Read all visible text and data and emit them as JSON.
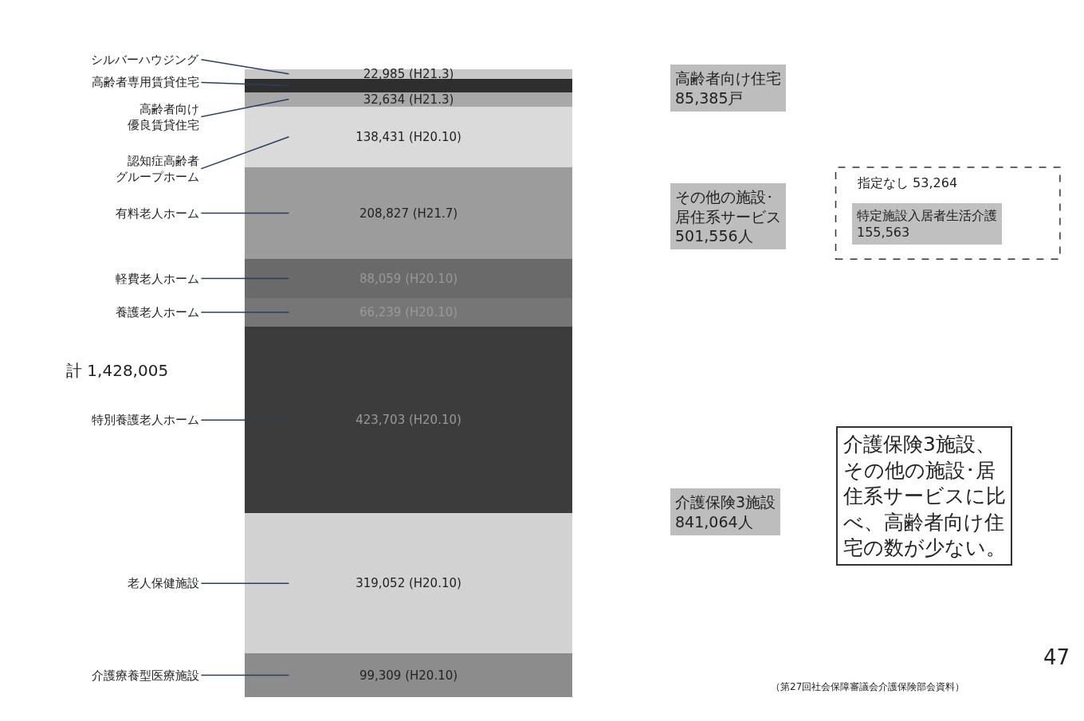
{
  "chart_data": {
    "type": "bar",
    "stacked": true,
    "categories": [
      null
    ],
    "legend": false,
    "series": [
      {
        "name": "介護療養型医療施設",
        "color": "#8c8c8c",
        "values": [
          99309
        ],
        "value_labels": [
          "99,309 (H20.10)"
        ]
      },
      {
        "name": "老人保健施設",
        "color": "#d2d2d2",
        "values": [
          319052
        ],
        "value_labels": [
          "319,052 (H20.10)"
        ]
      },
      {
        "name": "特別養護老人ホーム",
        "color": "#3c3c3c",
        "values": [
          423703
        ],
        "value_labels": [
          "423,703 (H20.10)"
        ]
      },
      {
        "name": "養護老人ホーム",
        "color": "#767676",
        "values": [
          66239
        ],
        "value_labels": [
          "66,239 (H20.10)"
        ]
      },
      {
        "name": "軽費老人ホーム",
        "color": "#6a6a6a",
        "values": [
          88059
        ],
        "value_labels": [
          "88,059 (H20.10)"
        ]
      },
      {
        "name": "有料老人ホーム",
        "color": "#9c9c9c",
        "values": [
          208827
        ],
        "value_labels": [
          "208,827 (H21.7)"
        ]
      },
      {
        "name": "認知症高齢者グループホーム",
        "color": "#dadada",
        "values": [
          138431
        ],
        "value_labels": [
          "138,431 (H20.10)"
        ]
      },
      {
        "name": "高齢者向け優良賃貸住宅",
        "color": "#a8a8a8",
        "values": [
          32634
        ],
        "value_labels": [
          "32,634 (H21.3)"
        ]
      },
      {
        "name": "高齢者専用賃貸住宅",
        "color": "#2e2e2e",
        "values": [
          29766
        ],
        "value_labels": [
          null
        ]
      },
      {
        "name": "シルバーハウジング",
        "color": "#c8c8c8",
        "values": [
          22985
        ],
        "value_labels": [
          "22,985 (H21.3)"
        ]
      }
    ],
    "annotations": [
      "高齢者向け住宅85,385戸",
      "その他の施設･居住系サービス501,556人",
      "介護保険3施設841,064人",
      "計 1,428,005",
      "指定なし 53,264",
      "特定施設入居者生活介護155,563",
      "介護保険3施設、その他の施設･居住系サービスに比べ、高齢者向け住宅の数が少ない。",
      "47",
      "（第27回社会保障審議会介護保険部会資料）"
    ]
  }
}
